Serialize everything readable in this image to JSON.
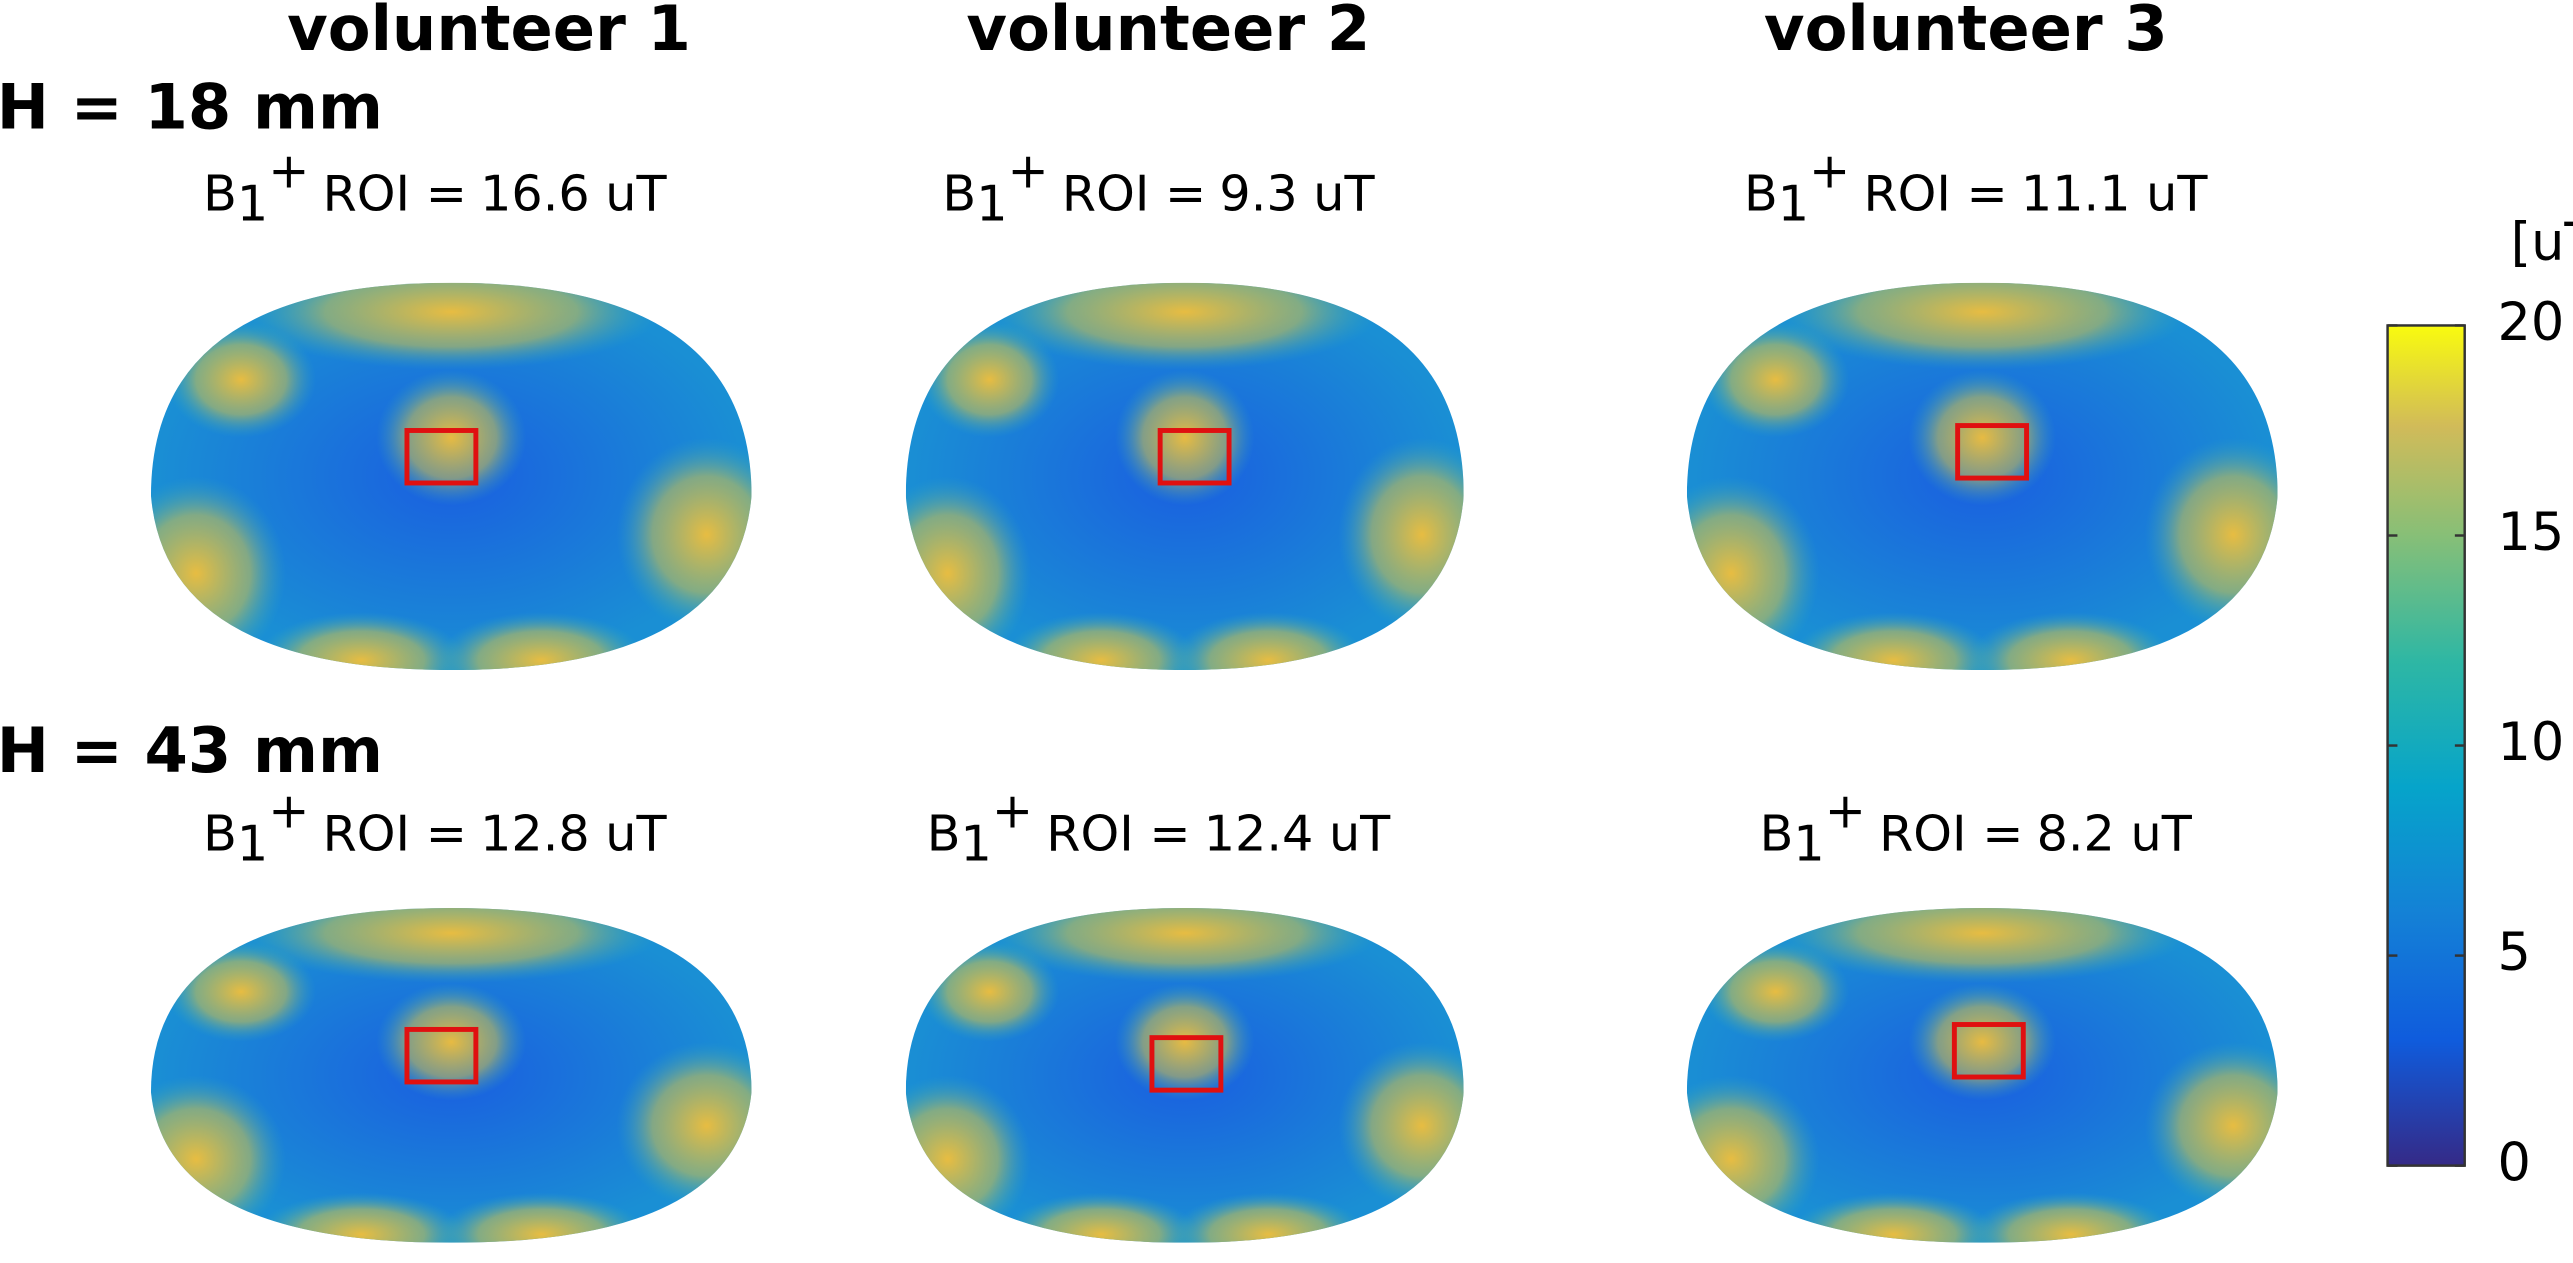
{
  "columns": [
    "volunteer 1",
    "volunteer 2",
    "volunteer 3"
  ],
  "roi_label": {
    "base": "B",
    "sub": "1",
    "sup": "+",
    "text": "ROI ="
  },
  "rows": [
    {
      "label": "H = 18 mm",
      "panels": [
        "16.6 uT",
        "9.3 uT",
        "11.1 uT"
      ]
    },
    {
      "label": "H = 43 mm",
      "panels": [
        "12.8 uT",
        "12.4 uT",
        "8.2 uT"
      ]
    }
  ],
  "colorbar": {
    "unit": "[uT]",
    "lim": [
      0,
      20
    ],
    "ticks": [
      0,
      5,
      10,
      15,
      20
    ]
  }
}
